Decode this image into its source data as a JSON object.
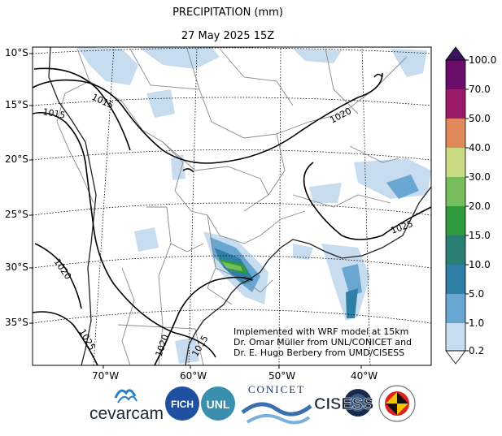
{
  "title": "PRECIPITATION (mm)",
  "subtitle": "27 May 2025 15Z",
  "lat_labels": [
    "10°S",
    "15°S",
    "20°S",
    "25°S",
    "30°S",
    "35°S"
  ],
  "lon_labels": [
    "70°W",
    "60°W",
    "50°W",
    "40°W"
  ],
  "isobar_labels": [
    "1015",
    "1015",
    "1020",
    "1020",
    "1025",
    "1020",
    "1025",
    "1015"
  ],
  "colorbar": {
    "levels": [
      "100.0",
      "70.0",
      "50.0",
      "40.0",
      "30.0",
      "20.0",
      "15.0",
      "10.0",
      "5.0",
      "1.0",
      "0.2"
    ],
    "colors": [
      "#6a0d6a",
      "#9c1a6a",
      "#e08a5c",
      "#f4b86e",
      "#c8da82",
      "#78bd5c",
      "#2e9a3c",
      "#2a7f72",
      "#2f7fa6",
      "#6aa6d2",
      "#c7dcee"
    ]
  },
  "credit": [
    "Implemented with WRF model at 15km",
    "Dr. Omar Müller from UNL/CONICET and",
    "Dr. E. Hugo Berbery from UMD/CISESS"
  ],
  "logos": {
    "cevarcam": "cevarcam",
    "fich": "FICH",
    "unl": "UNL",
    "conicet": "CONICET",
    "cisess": "CISESS"
  }
}
